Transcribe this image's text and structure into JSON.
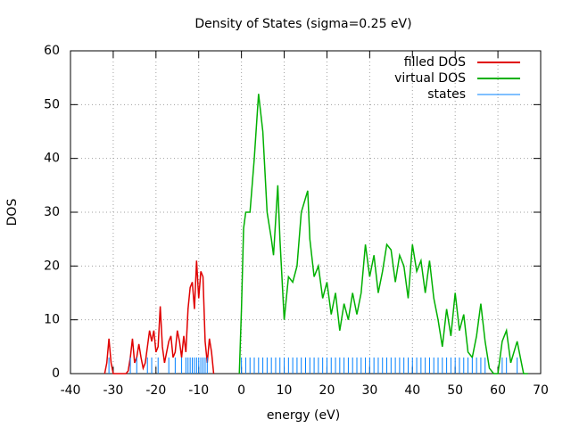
{
  "chart_data": {
    "type": "line",
    "title": "Density of States (sigma=0.25 eV)",
    "xlabel": "energy (eV)",
    "ylabel": "DOS",
    "xlim": [
      -40,
      70
    ],
    "ylim": [
      0,
      60
    ],
    "xticks": [
      -40,
      -30,
      -20,
      -10,
      0,
      10,
      20,
      30,
      40,
      50,
      60,
      70
    ],
    "yticks": [
      0,
      10,
      20,
      30,
      40,
      50,
      60
    ],
    "grid": true,
    "legend": "top-right",
    "series": [
      {
        "name": "filled DOS",
        "color": "#e00000",
        "style": "lines",
        "x": [
          -32,
          -31.5,
          -31,
          -30.5,
          -30,
          -29,
          -28,
          -27,
          -26.5,
          -26,
          -25.5,
          -25,
          -24.5,
          -24,
          -23.5,
          -23,
          -22.5,
          -22,
          -21.5,
          -21,
          -20.5,
          -20,
          -19.5,
          -19,
          -18.5,
          -18,
          -17.5,
          -17,
          -16.5,
          -16,
          -15.5,
          -15,
          -14.5,
          -14,
          -13.5,
          -13,
          -12.5,
          -12,
          -11.5,
          -11,
          -10.5,
          -10,
          -9.5,
          -9,
          -8.5,
          -8,
          -7.5,
          -7,
          -6.5
        ],
        "values": [
          0,
          2,
          6.5,
          2,
          0,
          0,
          0,
          0,
          0.5,
          3,
          6.5,
          2,
          3,
          5.5,
          3,
          1,
          2,
          5,
          8,
          6,
          8,
          4,
          5,
          12.5,
          5,
          2,
          4,
          6,
          7,
          3,
          4,
          8,
          6,
          3,
          7,
          4,
          12,
          16,
          17,
          12,
          21,
          14,
          19,
          18,
          6,
          2,
          6.5,
          4,
          0
        ]
      },
      {
        "name": "virtual DOS",
        "color": "#00b000",
        "style": "lines",
        "x": [
          -0.5,
          0,
          0.5,
          1,
          2,
          3,
          4,
          5,
          6,
          7,
          7.5,
          8.5,
          9,
          10,
          11,
          12,
          13,
          14,
          15.5,
          16,
          17,
          18,
          19,
          20,
          21,
          22,
          23,
          24,
          25,
          26,
          27,
          28,
          29,
          30,
          31,
          32,
          33,
          34,
          35,
          36,
          37,
          38,
          39,
          40,
          41,
          42,
          43,
          44,
          45,
          46,
          47,
          48,
          49,
          50,
          51,
          52,
          53,
          54,
          55,
          56,
          57,
          58,
          59,
          60,
          61,
          62,
          63,
          64.5,
          66,
          67
        ],
        "values": [
          0,
          12,
          27,
          30,
          30,
          40,
          52,
          45,
          30,
          25,
          22,
          35,
          25,
          10,
          18,
          17,
          20,
          30,
          34,
          25,
          18,
          20,
          14,
          17,
          11,
          15,
          8,
          13,
          10,
          15,
          11,
          15,
          24,
          18,
          22,
          15,
          19,
          24,
          23,
          17,
          22,
          20,
          14,
          24,
          19,
          21,
          15,
          21,
          14,
          10,
          5,
          12,
          7,
          15,
          8,
          11,
          4,
          3,
          7,
          13,
          6,
          1,
          0,
          0,
          6,
          8,
          2,
          6,
          0,
          0
        ]
      },
      {
        "name": "states",
        "color": "#0080ff",
        "style": "impulses",
        "x": [
          -31,
          -26,
          -24.5,
          -22,
          -21,
          -19.5,
          -17,
          -15.5,
          -14,
          -13,
          -12.5,
          -12,
          -11.5,
          -11,
          -10.5,
          -10,
          -9.5,
          -9,
          -8.5,
          -8,
          0,
          1,
          2,
          3,
          4,
          5,
          6,
          7,
          8,
          9,
          10,
          11,
          12,
          13,
          14,
          15,
          16,
          17,
          18,
          19,
          20,
          21,
          22,
          23,
          24,
          25,
          26,
          27,
          28,
          29,
          30,
          31,
          32,
          33,
          34,
          35,
          36,
          37,
          38,
          39,
          40,
          41,
          42,
          43,
          44,
          45,
          46,
          47,
          48,
          49,
          50,
          51,
          52,
          53,
          54,
          55,
          56,
          57,
          61,
          62,
          64.5
        ],
        "values": [
          3,
          3,
          3,
          3,
          3,
          3,
          3,
          3,
          3,
          3,
          3,
          3,
          3,
          3,
          3,
          3,
          3,
          3,
          3,
          3,
          3,
          3,
          3,
          3,
          3,
          3,
          3,
          3,
          3,
          3,
          3,
          3,
          3,
          3,
          3,
          3,
          3,
          3,
          3,
          3,
          3,
          3,
          3,
          3,
          3,
          3,
          3,
          3,
          3,
          3,
          3,
          3,
          3,
          3,
          3,
          3,
          3,
          3,
          3,
          3,
          3,
          3,
          3,
          3,
          3,
          3,
          3,
          3,
          3,
          3,
          3,
          3,
          3,
          3,
          3,
          3,
          3,
          3,
          3,
          3,
          3
        ]
      }
    ]
  }
}
